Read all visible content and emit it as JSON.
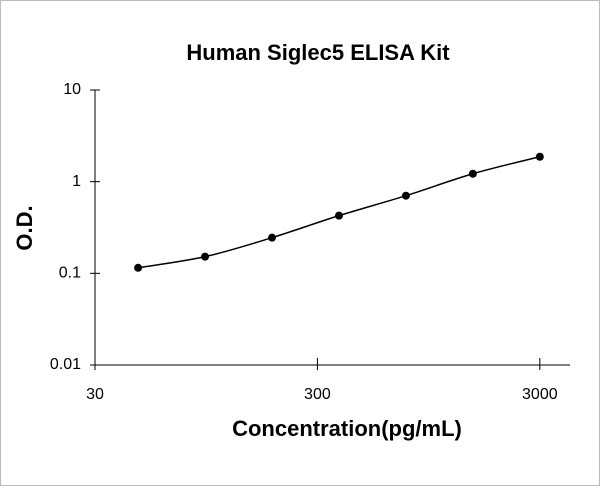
{
  "chart_data": {
    "type": "scatter",
    "title": "Human Siglec5 ELISA Kit",
    "x_label": "Concentration(pg/mL)",
    "y_label": "O.D.",
    "x_scale": "log",
    "y_scale": "log",
    "xlim": [
      30,
      4100
    ],
    "xticks": [
      30,
      300,
      3000
    ],
    "ylim": [
      0.01,
      10
    ],
    "yticks": [
      0.01,
      0.1,
      1,
      10
    ],
    "series": [
      {
        "color": "#000000",
        "line": true,
        "x": [
          46.875,
          93.75,
          187.5,
          375,
          750,
          1500,
          3000
        ],
        "values": [
          0.115,
          0.152,
          0.245,
          0.426,
          0.703,
          1.22,
          1.87
        ]
      }
    ]
  }
}
